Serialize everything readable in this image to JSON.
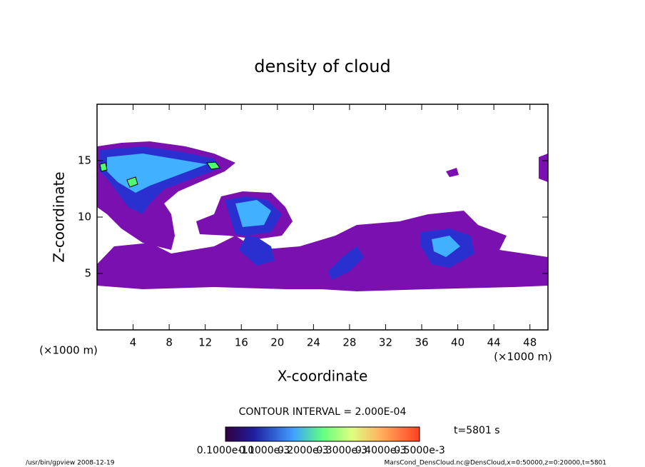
{
  "chart_data": {
    "type": "contour",
    "title": "density of cloud",
    "x_label": "X-coordinate",
    "y_label": "Z-coordinate",
    "x_unit": "(×1000 m)",
    "y_unit": "(×1000 m)",
    "xlim": [
      0,
      50
    ],
    "xticks": [
      4,
      8,
      12,
      16,
      20,
      24,
      28,
      32,
      36,
      40,
      44,
      48
    ],
    "ylim": [
      0,
      20
    ],
    "yticks": [
      5,
      10,
      15
    ],
    "contour_interval": "CONTOUR INTERVAL = 2.000E-04",
    "time": "t=5801 s",
    "colorbar_labels": [
      "0.1000e-10",
      "0.1000e-3",
      "0.2000e-3",
      "0.3000e-3",
      "0.4000e-3",
      "0.5000e-3"
    ],
    "footer_left": "/usr/bin/gpview   2008-12-19",
    "footer_right": "MarsCond_DensCloud.nc@DensCloud,x=0:50000,z=0:20000,t=5801"
  }
}
